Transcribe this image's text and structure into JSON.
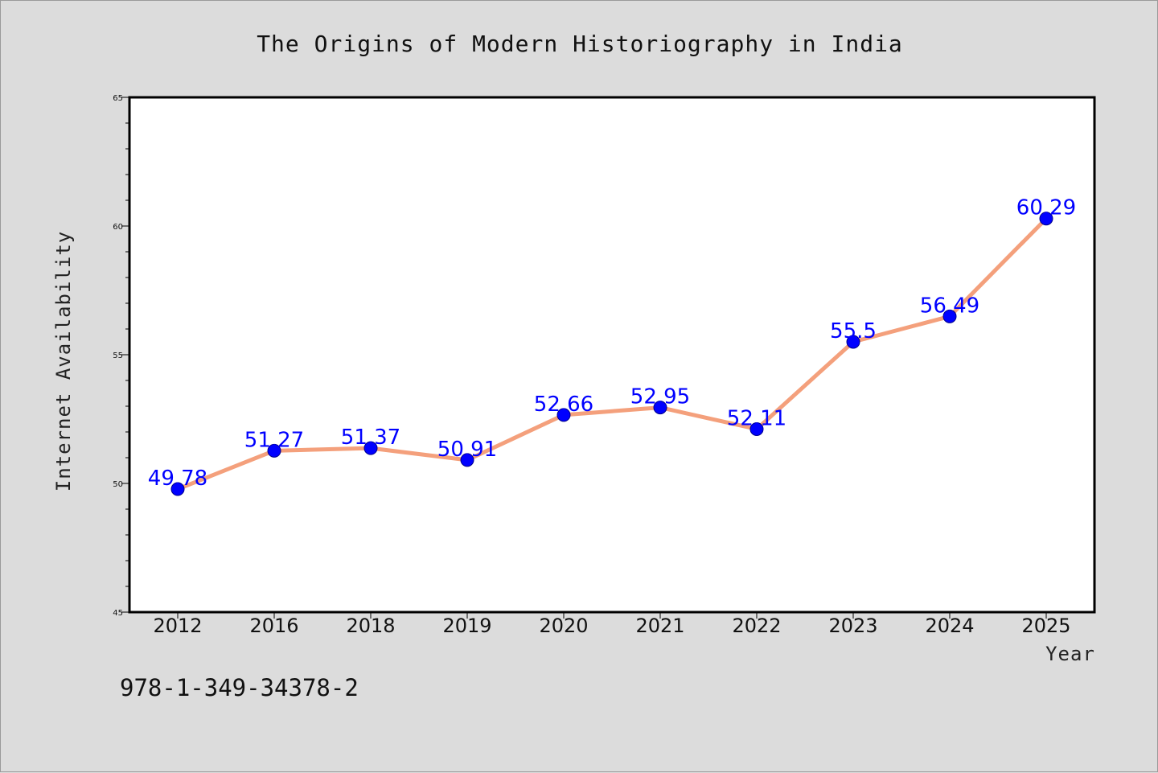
{
  "chart_data": {
    "type": "line",
    "title": "The Origins of Modern Historiography in India",
    "xlabel": "Year",
    "ylabel": "Internet Availability",
    "categories": [
      "2012",
      "2016",
      "2018",
      "2019",
      "2020",
      "2021",
      "2022",
      "2023",
      "2024",
      "2025"
    ],
    "series": [
      {
        "values": [
          49.78,
          51.27,
          51.37,
          50.91,
          52.66,
          52.95,
          52.11,
          55.5,
          56.49,
          60.29
        ],
        "labels": [
          "49.78",
          "51.27",
          "51.37",
          "50.91",
          "52.66",
          "52.95",
          "52.11",
          "55.5",
          "56.49",
          "60.29"
        ],
        "line_color": "#f4a07c",
        "marker_color": "#0000ff"
      }
    ],
    "ylim": [
      45,
      65
    ],
    "y_ticks": [
      "45",
      "50",
      "55",
      "60",
      "65"
    ],
    "grid": false,
    "legend": "none"
  },
  "footnote": "978-1-349-34378-2",
  "colors": {
    "background": "#dcdcdc",
    "plot_background": "#ffffff",
    "line": "#f4a07c",
    "marker": "#0000ff",
    "data_label": "#0000ff"
  }
}
